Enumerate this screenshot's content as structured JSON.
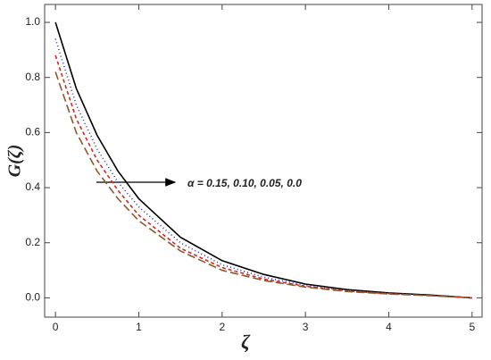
{
  "chart_data": {
    "type": "line",
    "xlabel": "ζ",
    "ylabel": "G(ζ)",
    "annotation": "α = 0.15, 0.10, 0.05, 0.0",
    "x": [
      0,
      0.25,
      0.5,
      0.75,
      1,
      1.5,
      2,
      2.5,
      3,
      3.5,
      4,
      4.5,
      5
    ],
    "series": [
      {
        "color": "#000000",
        "dash": "none",
        "values": [
          1.0,
          0.76,
          0.59,
          0.46,
          0.36,
          0.22,
          0.135,
          0.085,
          0.05,
          0.03,
          0.018,
          0.01,
          0.0
        ]
      },
      {
        "color": "#2233cc",
        "dash": "1,3",
        "values": [
          0.94,
          0.7,
          0.54,
          0.42,
          0.33,
          0.2,
          0.12,
          0.075,
          0.045,
          0.027,
          0.016,
          0.009,
          0.0
        ]
      },
      {
        "color": "#dd2222",
        "dash": "4,3",
        "values": [
          0.88,
          0.65,
          0.5,
          0.39,
          0.3,
          0.18,
          0.11,
          0.068,
          0.042,
          0.025,
          0.015,
          0.008,
          0.0
        ]
      },
      {
        "color": "#8b5a2b",
        "dash": "9,4",
        "values": [
          0.82,
          0.6,
          0.46,
          0.36,
          0.28,
          0.17,
          0.1,
          0.063,
          0.039,
          0.023,
          0.014,
          0.008,
          0.0
        ]
      }
    ],
    "xlim": [
      -0.13,
      5.12
    ],
    "ylim": [
      -0.07,
      1.065
    ],
    "xticks": [
      0,
      1,
      2,
      3,
      4,
      5
    ],
    "yticks": [
      {
        "value": 0,
        "label": "0.0"
      },
      0.2,
      0.4,
      0.6,
      0.8,
      {
        "value": 1,
        "label": "1.0"
      }
    ]
  }
}
